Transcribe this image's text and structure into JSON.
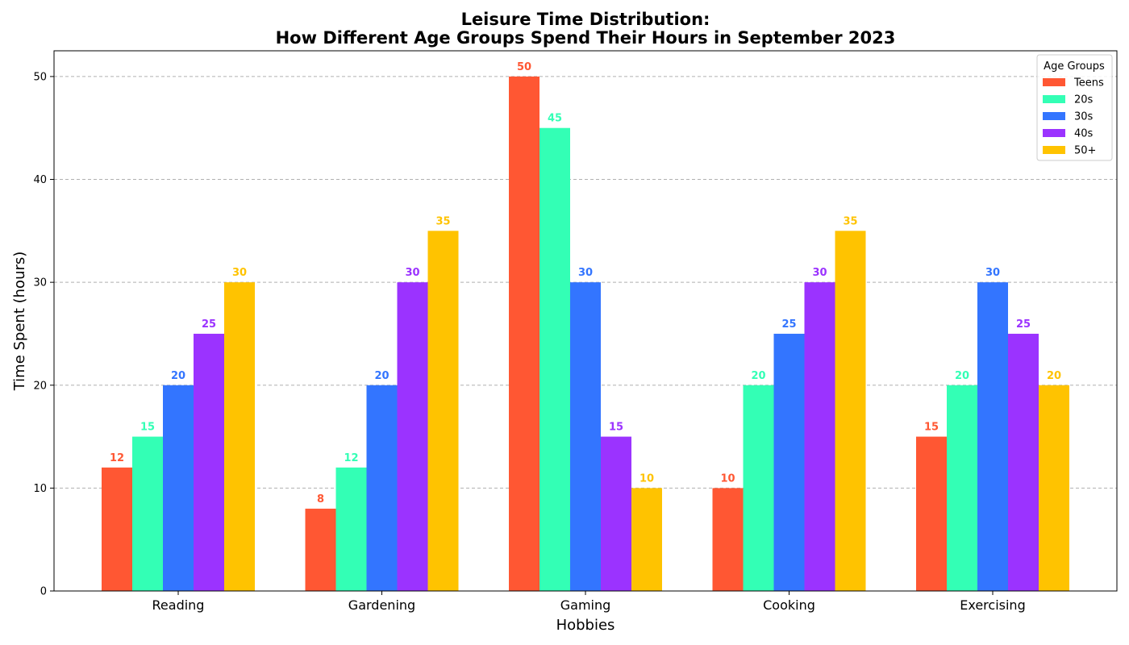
{
  "chart_data": {
    "type": "bar",
    "title_line1": "Leisure Time Distribution:",
    "title_line2": "How Different Age Groups Spend Their Hours in September 2023",
    "xlabel": "Hobbies",
    "ylabel": "Time Spent (hours)",
    "ylim": [
      0,
      52.5
    ],
    "yticks": [
      0,
      10,
      20,
      30,
      40,
      50
    ],
    "grid": "y-dashed",
    "legend_title": "Age Groups",
    "legend_position": "top-right",
    "categories": [
      "Reading",
      "Gardening",
      "Gaming",
      "Cooking",
      "Exercising"
    ],
    "series": [
      {
        "name": "Teens",
        "color": "#FF5733",
        "values": [
          12,
          8,
          50,
          10,
          15
        ]
      },
      {
        "name": "20s",
        "color": "#33FFB5",
        "values": [
          15,
          12,
          45,
          20,
          20
        ]
      },
      {
        "name": "30s",
        "color": "#3375FF",
        "values": [
          20,
          20,
          30,
          25,
          30
        ]
      },
      {
        "name": "40s",
        "color": "#9B33FF",
        "values": [
          25,
          30,
          15,
          30,
          25
        ]
      },
      {
        "name": "50+",
        "color": "#FFC300",
        "values": [
          30,
          35,
          10,
          35,
          20
        ]
      }
    ]
  }
}
